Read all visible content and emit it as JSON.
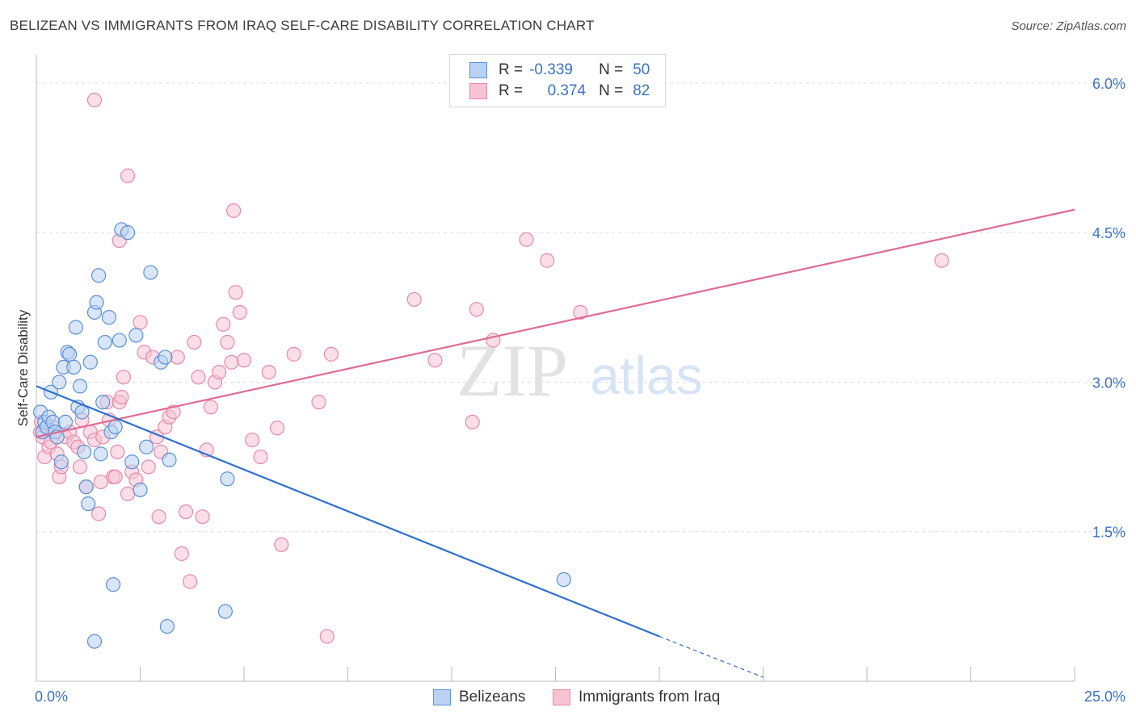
{
  "title": "BELIZEAN VS IMMIGRANTS FROM IRAQ SELF-CARE DISABILITY CORRELATION CHART",
  "source": "Source: ZipAtlas.com",
  "watermark": {
    "zip": "ZIP",
    "atlas": "atlas"
  },
  "legend": {
    "rows": [
      {
        "r_label": "R =",
        "r_value": "-0.339",
        "n_label": "N =",
        "n_value": "50"
      },
      {
        "r_label": "R =",
        "r_value": "0.374",
        "n_label": "N =",
        "n_value": "82"
      }
    ]
  },
  "bottom_legend": [
    "Belizeans",
    "Immigrants from Iraq"
  ],
  "colors": {
    "blue_fill": "#b9d2f3",
    "blue_stroke": "#5b8fd8",
    "blue_line": "#2f6fd1",
    "pink_fill": "#f7c3d3",
    "pink_stroke": "#e68aa8",
    "pink_line": "#e06b93",
    "grid": "#dddddd",
    "tick_label": "#3a72c6"
  },
  "chart_data": {
    "type": "scatter",
    "ylabel": "Self-Care Disability",
    "xlim": [
      0,
      25
    ],
    "ylim": [
      0,
      6.25
    ],
    "x_tick_labels": [
      "0.0%",
      "25.0%"
    ],
    "y_ticks": [
      1.5,
      3.0,
      4.5,
      6.0
    ],
    "y_tick_labels": [
      "1.5%",
      "3.0%",
      "4.5%",
      "6.0%"
    ],
    "series": [
      {
        "name": "Belizeans",
        "points": [
          [
            0.1,
            2.7
          ],
          [
            0.15,
            2.5
          ],
          [
            0.2,
            2.6
          ],
          [
            0.25,
            2.55
          ],
          [
            0.3,
            2.65
          ],
          [
            0.35,
            2.9
          ],
          [
            0.4,
            2.6
          ],
          [
            0.45,
            2.5
          ],
          [
            0.5,
            2.45
          ],
          [
            0.55,
            3.0
          ],
          [
            0.6,
            2.2
          ],
          [
            0.65,
            3.15
          ],
          [
            0.7,
            2.6
          ],
          [
            0.75,
            3.3
          ],
          [
            0.8,
            3.28
          ],
          [
            0.9,
            3.15
          ],
          [
            0.95,
            3.55
          ],
          [
            1.0,
            2.75
          ],
          [
            1.05,
            2.96
          ],
          [
            1.1,
            2.7
          ],
          [
            1.15,
            2.3
          ],
          [
            1.2,
            1.95
          ],
          [
            1.25,
            1.78
          ],
          [
            1.3,
            3.2
          ],
          [
            1.4,
            3.7
          ],
          [
            1.45,
            3.8
          ],
          [
            1.5,
            4.07
          ],
          [
            1.55,
            2.28
          ],
          [
            1.6,
            2.8
          ],
          [
            1.65,
            3.4
          ],
          [
            1.75,
            3.65
          ],
          [
            1.8,
            2.5
          ],
          [
            1.9,
            2.55
          ],
          [
            2.0,
            3.42
          ],
          [
            2.05,
            4.53
          ],
          [
            2.2,
            4.5
          ],
          [
            2.3,
            2.2
          ],
          [
            2.4,
            3.47
          ],
          [
            2.5,
            1.92
          ],
          [
            2.65,
            2.35
          ],
          [
            2.75,
            4.1
          ],
          [
            3.0,
            3.2
          ],
          [
            3.1,
            3.25
          ],
          [
            3.2,
            2.22
          ],
          [
            1.85,
            0.97
          ],
          [
            1.4,
            0.4
          ],
          [
            3.15,
            0.55
          ],
          [
            4.55,
            0.7
          ],
          [
            4.6,
            2.03
          ],
          [
            12.7,
            1.02
          ]
        ]
      },
      {
        "name": "Immigrants from Iraq",
        "points": [
          [
            0.1,
            2.5
          ],
          [
            0.15,
            2.45
          ],
          [
            0.2,
            2.25
          ],
          [
            0.3,
            2.35
          ],
          [
            0.4,
            2.55
          ],
          [
            0.5,
            2.28
          ],
          [
            0.55,
            2.05
          ],
          [
            0.6,
            2.15
          ],
          [
            0.7,
            2.45
          ],
          [
            0.8,
            2.5
          ],
          [
            0.9,
            2.4
          ],
          [
            1.0,
            2.35
          ],
          [
            1.05,
            2.15
          ],
          [
            1.1,
            2.62
          ],
          [
            1.2,
            1.95
          ],
          [
            1.3,
            2.5
          ],
          [
            1.4,
            2.42
          ],
          [
            1.5,
            1.68
          ],
          [
            1.55,
            2.0
          ],
          [
            1.6,
            2.45
          ],
          [
            1.7,
            2.8
          ],
          [
            1.75,
            2.62
          ],
          [
            1.85,
            2.05
          ],
          [
            1.95,
            2.3
          ],
          [
            2.0,
            2.8
          ],
          [
            2.05,
            2.85
          ],
          [
            2.1,
            3.05
          ],
          [
            2.2,
            1.88
          ],
          [
            2.3,
            2.1
          ],
          [
            2.4,
            2.02
          ],
          [
            2.5,
            3.6
          ],
          [
            2.6,
            3.3
          ],
          [
            2.7,
            2.15
          ],
          [
            2.8,
            3.25
          ],
          [
            2.9,
            2.45
          ],
          [
            3.0,
            2.3
          ],
          [
            3.1,
            2.55
          ],
          [
            3.2,
            2.65
          ],
          [
            3.3,
            2.7
          ],
          [
            3.4,
            3.25
          ],
          [
            3.5,
            1.28
          ],
          [
            3.6,
            1.7
          ],
          [
            3.7,
            1.0
          ],
          [
            3.8,
            3.4
          ],
          [
            3.9,
            3.05
          ],
          [
            4.0,
            1.65
          ],
          [
            4.1,
            2.32
          ],
          [
            4.2,
            2.75
          ],
          [
            4.3,
            3.0
          ],
          [
            4.4,
            3.1
          ],
          [
            4.5,
            3.58
          ],
          [
            4.6,
            3.4
          ],
          [
            4.7,
            3.2
          ],
          [
            4.8,
            3.9
          ],
          [
            4.9,
            3.7
          ],
          [
            5.0,
            3.22
          ],
          [
            5.2,
            2.42
          ],
          [
            5.4,
            2.25
          ],
          [
            5.6,
            3.1
          ],
          [
            5.8,
            2.54
          ],
          [
            5.9,
            1.37
          ],
          [
            6.2,
            3.28
          ],
          [
            6.8,
            2.8
          ],
          [
            7.0,
            0.45
          ],
          [
            7.1,
            3.28
          ],
          [
            9.1,
            3.83
          ],
          [
            9.6,
            3.22
          ],
          [
            10.5,
            2.6
          ],
          [
            10.6,
            3.73
          ],
          [
            11.0,
            3.42
          ],
          [
            11.8,
            4.43
          ],
          [
            12.3,
            4.22
          ],
          [
            13.1,
            3.7
          ],
          [
            21.8,
            4.22
          ],
          [
            1.4,
            5.83
          ],
          [
            2.2,
            5.07
          ],
          [
            2.0,
            4.42
          ],
          [
            4.75,
            4.72
          ],
          [
            0.12,
            2.6
          ],
          [
            0.35,
            2.4
          ],
          [
            2.95,
            1.65
          ],
          [
            1.9,
            2.05
          ]
        ]
      }
    ],
    "trend_lines": [
      {
        "name": "Belizeans",
        "start": [
          0.0,
          2.96
        ],
        "end_solid": [
          15.0,
          0.45
        ],
        "end_dashed": [
          17.5,
          0.04
        ]
      },
      {
        "name": "Immigrants from Iraq",
        "start": [
          0.0,
          2.45
        ],
        "end": [
          25.0,
          4.73
        ]
      }
    ]
  }
}
